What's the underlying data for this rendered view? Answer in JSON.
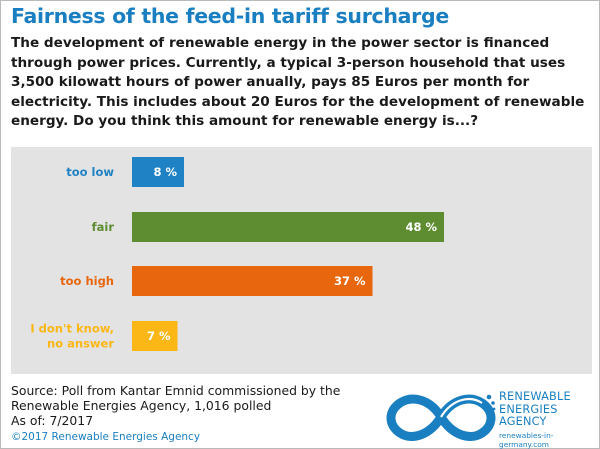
{
  "title": "Fairness of the feed-in tariff surcharge",
  "question": "The development of renewable energy in the power sector is financed through power prices. Currently, a typical 3-person household that uses 3,500 kilowatt hours of power anually, pays 85 Euros per month for electricity. This includes about 20 Euros for the development of renewable energy. Do you think this amount for renewable energy is...?",
  "chart_data": {
    "type": "bar",
    "orientation": "horizontal",
    "categories": [
      [
        "too low"
      ],
      [
        "fair"
      ],
      [
        "too high"
      ],
      [
        "I don't know,",
        "no answer"
      ]
    ],
    "values": [
      8,
      48,
      37,
      7
    ],
    "value_labels": [
      "8 %",
      "48 %",
      "37 %",
      "7 %"
    ],
    "colors": [
      "#1f82c4",
      "#5e8c31",
      "#e8670e",
      "#fbb716"
    ],
    "xlim": [
      0,
      100
    ],
    "grid": false,
    "legend": "none",
    "background": "#e3e3e3"
  },
  "source": {
    "lines": [
      "Source: Poll from Kantar Emnid commissioned by the",
      "Renewable Energies Agency, 1,016 polled",
      "As of: 7/2017"
    ],
    "copyright": "©2017 Renewable Energies Agency"
  },
  "logo": {
    "lines": [
      "RENEWABLE",
      "ENERGIES",
      "AGENCY"
    ],
    "url": "renewables-in-germany.com",
    "color": "#1a7fc1"
  }
}
